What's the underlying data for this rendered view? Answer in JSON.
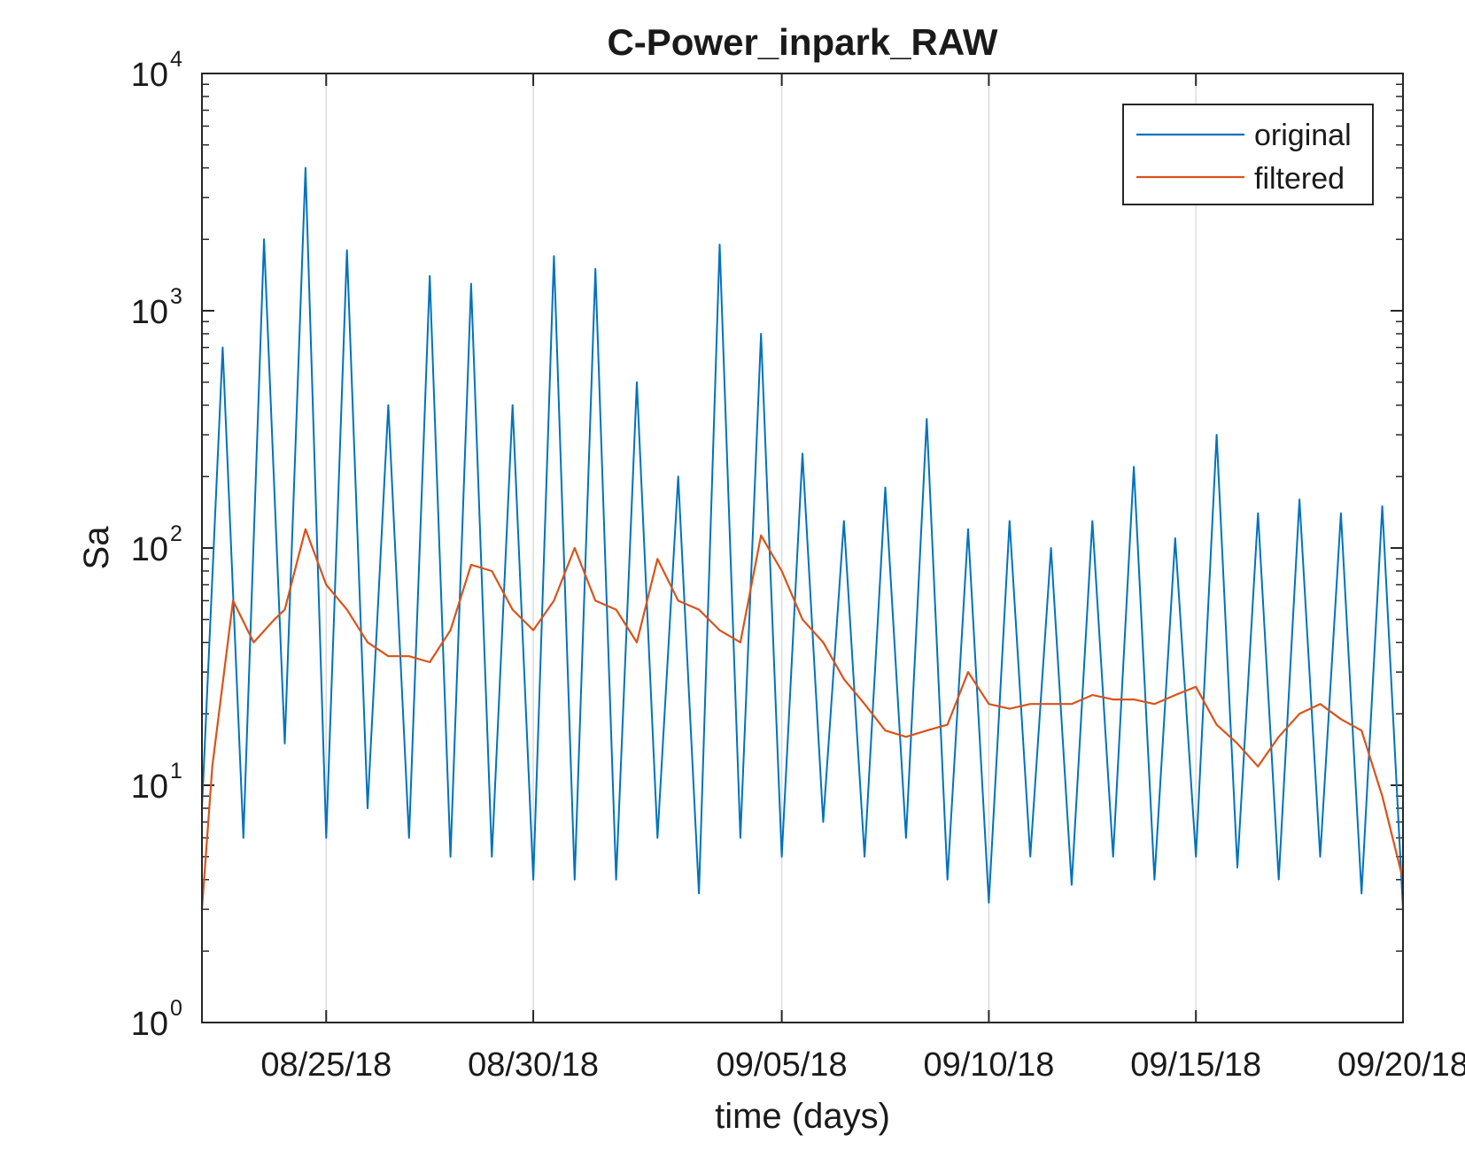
{
  "chart_data": {
    "type": "line",
    "title": "C-Power_inpark_RAW",
    "xlabel": "time (days)",
    "ylabel": "Sa",
    "yscale": "log",
    "ylim": [
      1,
      10000
    ],
    "xlim": [
      "08/22/18",
      "09/20/18"
    ],
    "grid": "x-major",
    "legend_position": "top-right",
    "y_ticks": [
      {
        "base": "10",
        "exp": "0"
      },
      {
        "base": "10",
        "exp": "1"
      },
      {
        "base": "10",
        "exp": "2"
      },
      {
        "base": "10",
        "exp": "3"
      },
      {
        "base": "10",
        "exp": "4"
      }
    ],
    "x_ticks": [
      "08/25/18",
      "08/30/18",
      "09/05/18",
      "09/10/18",
      "09/15/18",
      "09/20/18"
    ],
    "series": [
      {
        "name": "original",
        "color": "#0072BD",
        "x": [
          "08/22/18 00:00",
          "08/22/18 12:00",
          "08/23/18 00:00",
          "08/23/18 12:00",
          "08/24/18 00:00",
          "08/24/18 12:00",
          "08/25/18 00:00",
          "08/25/18 12:00",
          "08/26/18 00:00",
          "08/26/18 12:00",
          "08/27/18 00:00",
          "08/27/18 12:00",
          "08/28/18 00:00",
          "08/28/18 12:00",
          "08/29/18 00:00",
          "08/29/18 12:00",
          "08/30/18 00:00",
          "08/30/18 12:00",
          "08/31/18 00:00",
          "08/31/18 12:00",
          "09/01/18 00:00",
          "09/01/18 12:00",
          "09/02/18 00:00",
          "09/02/18 12:00",
          "09/03/18 00:00",
          "09/03/18 12:00",
          "09/04/18 00:00",
          "09/04/18 12:00",
          "09/05/18 00:00",
          "09/05/18 12:00",
          "09/06/18 00:00",
          "09/06/18 12:00",
          "09/07/18 00:00",
          "09/07/18 12:00",
          "09/08/18 00:00",
          "09/08/18 12:00",
          "09/09/18 00:00",
          "09/09/18 12:00",
          "09/10/18 00:00",
          "09/10/18 12:00",
          "09/11/18 00:00",
          "09/11/18 12:00",
          "09/12/18 00:00",
          "09/12/18 12:00",
          "09/13/18 00:00",
          "09/13/18 12:00",
          "09/14/18 00:00",
          "09/14/18 12:00",
          "09/15/18 00:00",
          "09/15/18 12:00",
          "09/16/18 00:00",
          "09/16/18 12:00",
          "09/17/18 00:00",
          "09/17/18 12:00",
          "09/18/18 00:00",
          "09/18/18 12:00",
          "09/19/18 00:00",
          "09/19/18 12:00",
          "09/20/18 00:00"
        ],
        "y": [
          8,
          700,
          6,
          2000,
          15,
          4000,
          6,
          1800,
          8,
          400,
          6,
          1400,
          5,
          1300,
          5,
          400,
          4,
          1700,
          4,
          1500,
          4,
          500,
          6,
          200,
          3.5,
          1900,
          6,
          800,
          5,
          250,
          7,
          130,
          5,
          180,
          6,
          350,
          4,
          120,
          3.2,
          130,
          5,
          100,
          3.8,
          130,
          5,
          220,
          4,
          110,
          5,
          300,
          4.5,
          140,
          4,
          160,
          5,
          140,
          3.5,
          150,
          3
        ]
      },
      {
        "name": "filtered",
        "color": "#D95319",
        "x": [
          "08/22/18 00:00",
          "08/22/18 06:00",
          "08/22/18 18:00",
          "08/23/18 06:00",
          "08/23/18 18:00",
          "08/24/18 00:00",
          "08/24/18 12:00",
          "08/25/18 00:00",
          "08/25/18 12:00",
          "08/26/18 00:00",
          "08/26/18 12:00",
          "08/27/18 00:00",
          "08/27/18 12:00",
          "08/28/18 00:00",
          "08/28/18 12:00",
          "08/29/18 00:00",
          "08/29/18 12:00",
          "08/30/18 00:00",
          "08/30/18 12:00",
          "08/31/18 00:00",
          "08/31/18 12:00",
          "09/01/18 00:00",
          "09/01/18 12:00",
          "09/02/18 00:00",
          "09/02/18 12:00",
          "09/03/18 00:00",
          "09/03/18 12:00",
          "09/04/18 00:00",
          "09/04/18 12:00",
          "09/05/18 00:00",
          "09/05/18 12:00",
          "09/06/18 00:00",
          "09/06/18 12:00",
          "09/07/18 00:00",
          "09/07/18 12:00",
          "09/08/18 00:00",
          "09/08/18 12:00",
          "09/09/18 00:00",
          "09/09/18 12:00",
          "09/10/18 00:00",
          "09/10/18 12:00",
          "09/11/18 00:00",
          "09/11/18 12:00",
          "09/12/18 00:00",
          "09/12/18 12:00",
          "09/13/18 00:00",
          "09/13/18 12:00",
          "09/14/18 00:00",
          "09/14/18 12:00",
          "09/15/18 00:00",
          "09/15/18 12:00",
          "09/16/18 00:00",
          "09/16/18 12:00",
          "09/17/18 00:00",
          "09/17/18 12:00",
          "09/18/18 00:00",
          "09/18/18 12:00",
          "09/19/18 00:00",
          "09/19/18 12:00",
          "09/20/18 00:00"
        ],
        "y": [
          3,
          12,
          60,
          40,
          50,
          55,
          120,
          70,
          55,
          40,
          35,
          35,
          33,
          45,
          85,
          80,
          55,
          45,
          60,
          100,
          60,
          55,
          40,
          90,
          60,
          55,
          45,
          40,
          113,
          80,
          50,
          40,
          28,
          22,
          17,
          16,
          17,
          18,
          30,
          22,
          21,
          22,
          22,
          22,
          24,
          23,
          23,
          22,
          24,
          26,
          18,
          15,
          12,
          16,
          20,
          22,
          19,
          17,
          9,
          4
        ]
      }
    ]
  }
}
